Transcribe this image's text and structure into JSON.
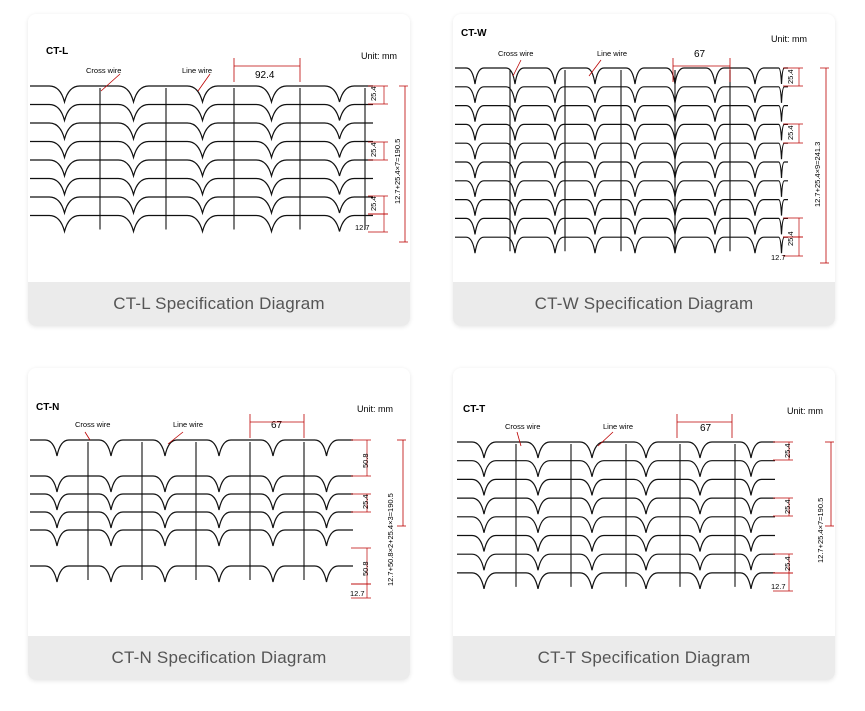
{
  "cards": [
    {
      "model": "CT-L",
      "unit": "Unit: mm",
      "cross_wire": "Cross wire",
      "line_wire": "Line wire",
      "pitch": "92.4",
      "vlabels": [
        "25.4",
        "25.4",
        "25.4",
        "12.7"
      ],
      "total": "12.7+25.4×7=190.5",
      "rows": 8,
      "caption": "CT-L Specification Diagram"
    },
    {
      "model": "CT-W",
      "unit": "Unit: mm",
      "cross_wire": "Cross wire",
      "line_wire": "Line wire",
      "pitch": "67",
      "vlabels": [
        "25.4",
        "25.4",
        "25.4",
        "12.7"
      ],
      "total": "12.7+25.4×9=241.3",
      "rows": 10,
      "caption": "CT-W Specification Diagram"
    },
    {
      "model": "CT-N",
      "unit": "Unit: mm",
      "cross_wire": "Cross wire",
      "line_wire": "Line wire",
      "pitch": "67",
      "vlabels": [
        "50.8",
        "25.4",
        "50.8",
        "12.7"
      ],
      "total": "12.7+50.8×2+25.4×3=190.5",
      "rows": 6,
      "caption": "CT-N Specification Diagram"
    },
    {
      "model": "CT-T",
      "unit": "Unit: mm",
      "cross_wire": "Cross wire",
      "line_wire": "Line wire",
      "pitch": "67",
      "vlabels": [
        "25.4",
        "25.4",
        "25.4",
        "12.7"
      ],
      "total": "12.7+25.4×7=190.5",
      "rows": 8,
      "caption": "CT-T Specification Diagram"
    }
  ]
}
